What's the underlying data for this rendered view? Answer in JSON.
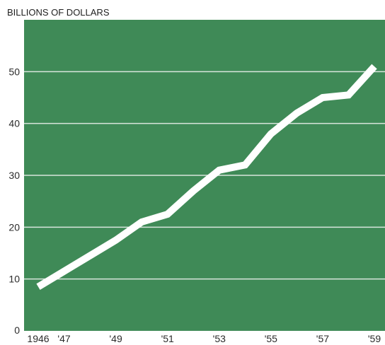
{
  "chart_data": {
    "type": "line",
    "title": "",
    "xlabel": "",
    "ylabel": "BILLIONS OF DOLLARS",
    "x": [
      1946,
      1947,
      1948,
      1949,
      1950,
      1951,
      1952,
      1953,
      1954,
      1955,
      1956,
      1957,
      1958,
      1959
    ],
    "x_tick_values": [
      1946,
      1947,
      1949,
      1951,
      1953,
      1955,
      1957,
      1959
    ],
    "x_tick_labels": [
      "1946",
      "'47",
      "'49",
      "'51",
      "'53",
      "'55",
      "'57",
      "'59"
    ],
    "y_ticks": [
      0,
      10,
      20,
      30,
      40,
      50
    ],
    "ylim": [
      0,
      60
    ],
    "xlim": [
      1946,
      1959
    ],
    "grid": true,
    "series": [
      {
        "values": [
          8.5,
          11.5,
          14.5,
          17.5,
          21.0,
          22.5,
          27.0,
          31.0,
          32.0,
          38.0,
          42.0,
          45.0,
          45.5,
          51.0
        ]
      }
    ],
    "colors": {
      "plot_background": "#3f8a57",
      "grid": "#d9e5dc",
      "line": "#ffffff",
      "text": "#2b2b2b"
    }
  }
}
